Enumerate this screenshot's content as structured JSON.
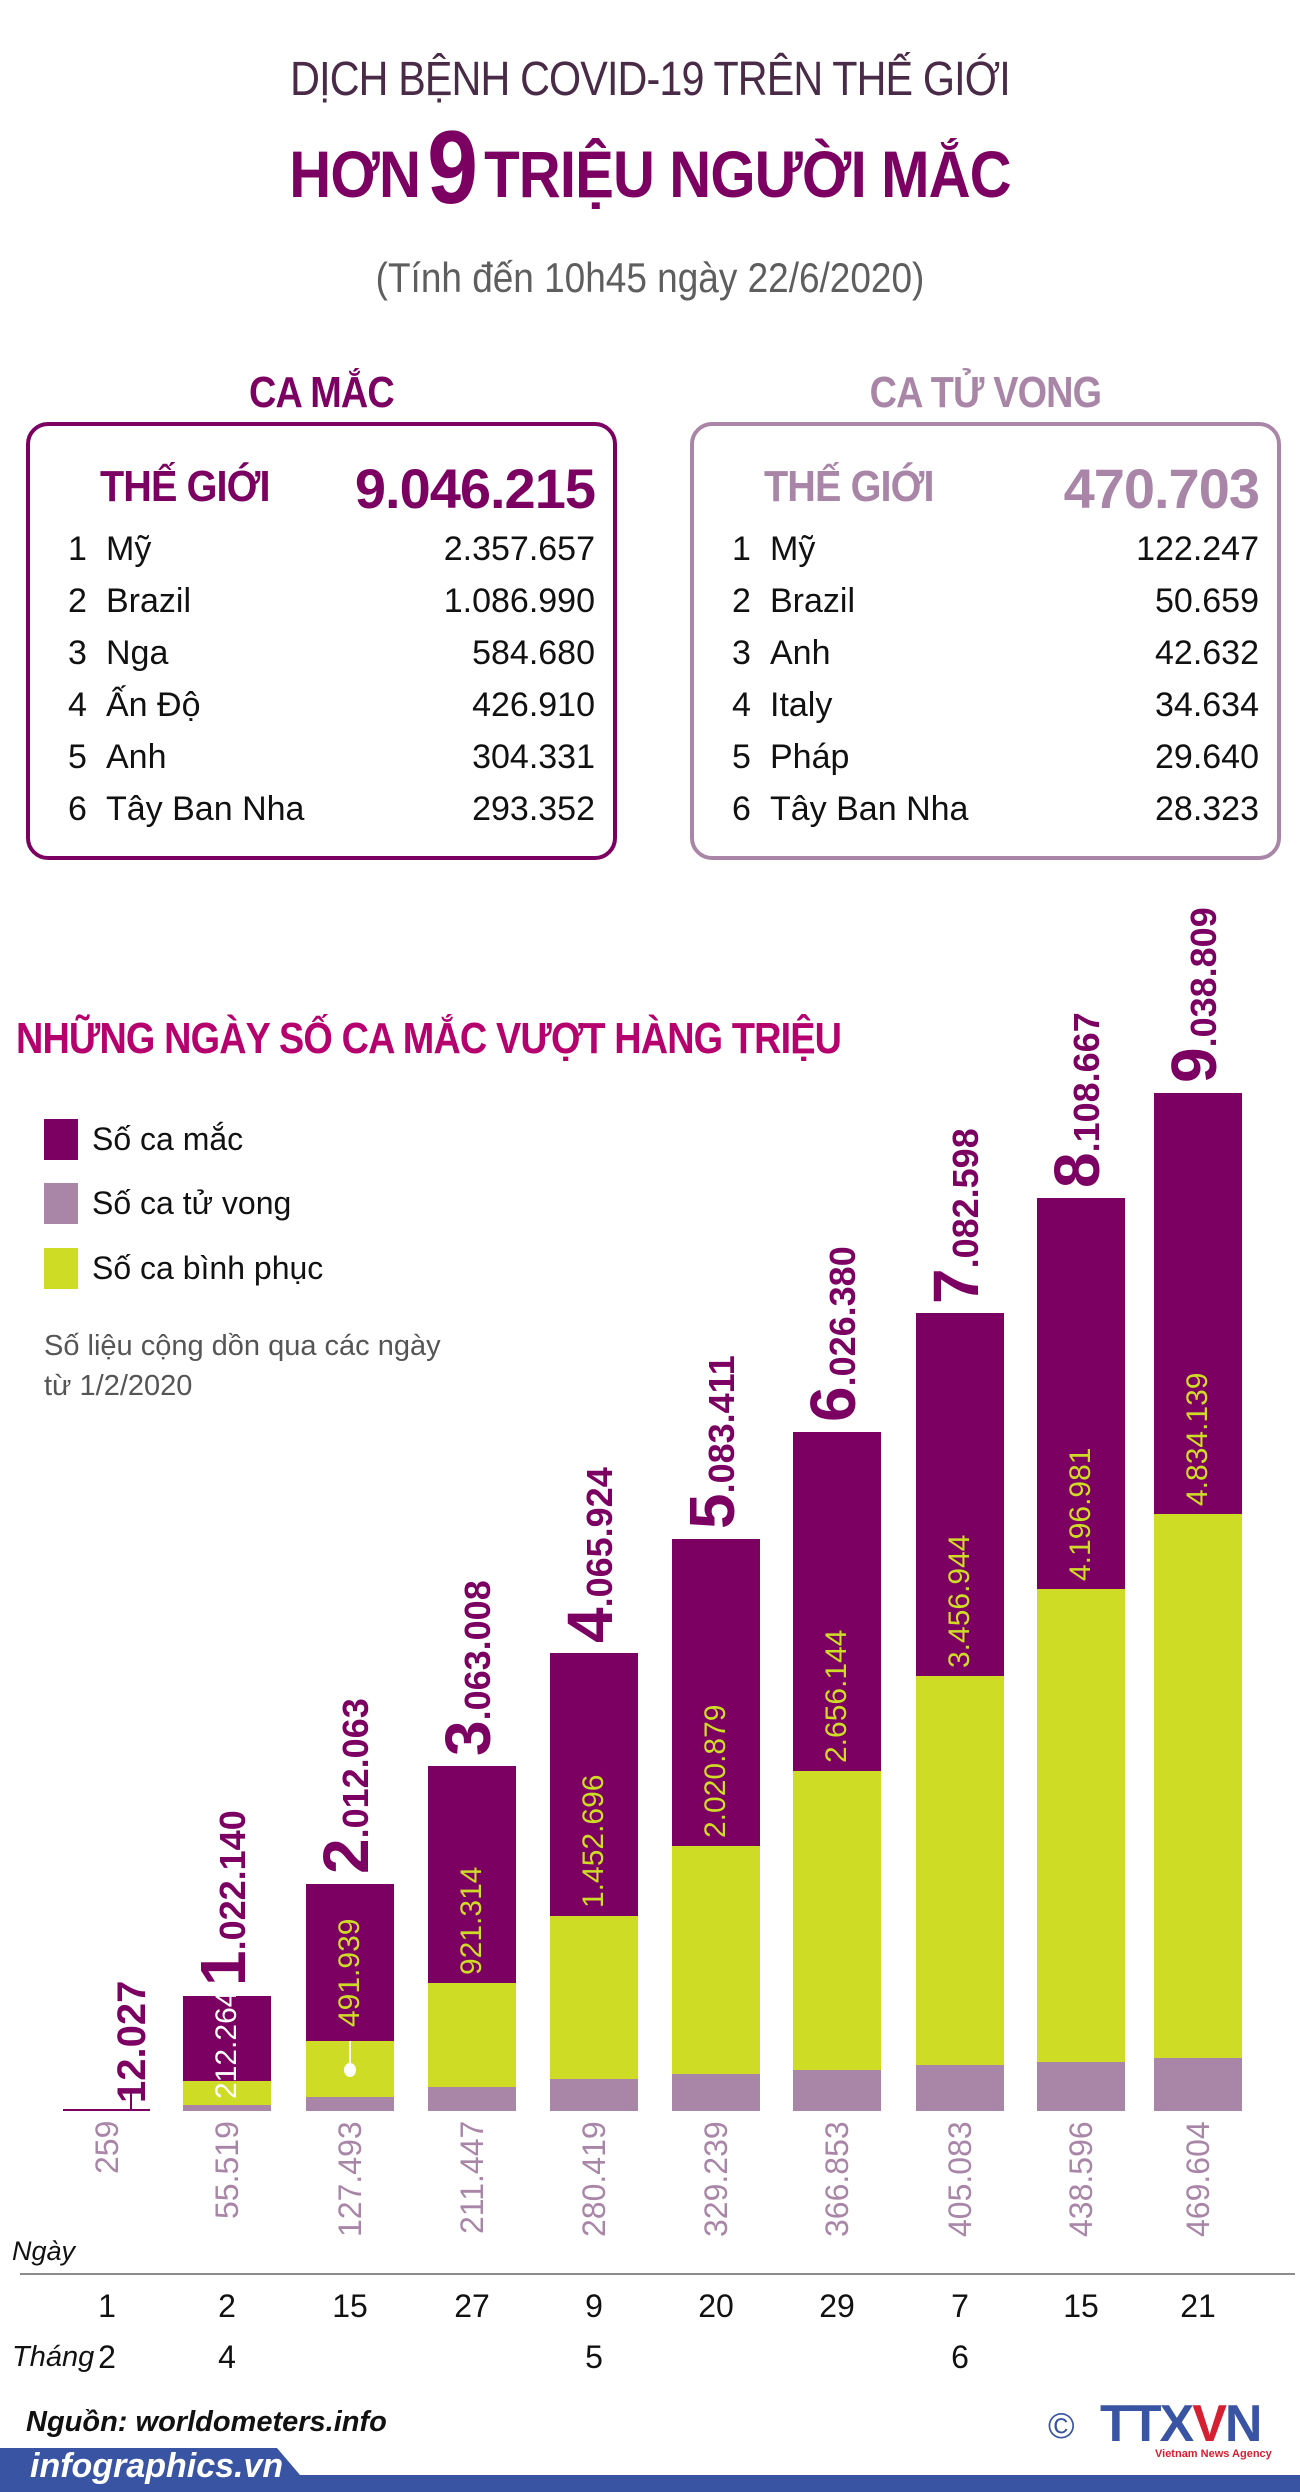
{
  "header": {
    "supertitle": "DỊCH BỆNH COVID-19 TRÊN THẾ GIỚI",
    "title_prefix": "HƠN",
    "title_number": "9",
    "title_suffix": "TRIỆU NGƯỜI MẮC",
    "subtitle": "(Tính đến 10h45 ngày 22/6/2020)"
  },
  "cases": {
    "heading": "CA MẮC",
    "world_label": "THẾ GIỚI",
    "world_value": "9.046.215",
    "countries": [
      {
        "rank": "1",
        "name": "Mỹ",
        "value": "2.357.657"
      },
      {
        "rank": "2",
        "name": "Brazil",
        "value": "1.086.990"
      },
      {
        "rank": "3",
        "name": "Nga",
        "value": "584.680"
      },
      {
        "rank": "4",
        "name": "Ấn Độ",
        "value": "426.910"
      },
      {
        "rank": "5",
        "name": "Anh",
        "value": "304.331"
      },
      {
        "rank": "6",
        "name": "Tây Ban Nha",
        "value": "293.352"
      }
    ]
  },
  "deaths": {
    "heading": "CA TỬ VONG",
    "world_label": "THẾ GIỚI",
    "world_value": "470.703",
    "countries": [
      {
        "rank": "1",
        "name": "Mỹ",
        "value": "122.247"
      },
      {
        "rank": "2",
        "name": "Brazil",
        "value": "50.659"
      },
      {
        "rank": "3",
        "name": "Anh",
        "value": "42.632"
      },
      {
        "rank": "4",
        "name": "Italy",
        "value": "34.634"
      },
      {
        "rank": "5",
        "name": "Pháp",
        "value": "29.640"
      },
      {
        "rank": "6",
        "name": "Tây Ban Nha",
        "value": "28.323"
      }
    ]
  },
  "chart": {
    "title": "NHỮNG NGÀY SỐ CA MẮC VƯỢT HÀNG TRIỆU",
    "legend": [
      {
        "label": "Số ca mắc",
        "color": "#7b0062"
      },
      {
        "label": "Số ca tử vong",
        "color": "#a986a8"
      },
      {
        "label": "Số ca bình phục",
        "color": "#cfdc26"
      }
    ],
    "note_line1": "Số liệu cộng dồn qua các ngày",
    "note_line2": "từ 1/2/2020",
    "day_axis_label": "Ngày",
    "month_axis_label": "Tháng"
  },
  "chart_data": {
    "type": "bar",
    "title": "NHỮNG NGÀY SỐ CA MẮC VƯỢT HÀNG TRIỆU",
    "subtitle": "Số liệu cộng dồn qua các ngày từ 1/2/2020",
    "stacked": "overlaid",
    "categories": [
      "1/2",
      "2/4",
      "15/4",
      "27/4",
      "9/5",
      "20/5",
      "29/5",
      "7/6",
      "15/6",
      "21/6"
    ],
    "days": [
      "1",
      "2",
      "15",
      "27",
      "9",
      "20",
      "29",
      "7",
      "15",
      "21"
    ],
    "months": [
      "2",
      "4",
      "",
      "",
      "5",
      "",
      "",
      "6",
      "",
      ""
    ],
    "series": [
      {
        "name": "Số ca mắc",
        "color": "#7b0062",
        "values": [
          12027,
          1022140,
          2012063,
          3063008,
          4065924,
          5083411,
          6026380,
          7082598,
          8108667,
          9038809
        ],
        "labels": [
          "12.027",
          "1.022.140",
          "2.012.063",
          "3.063.008",
          "4.065.924",
          "5.083.411",
          "6.026.380",
          "7.082.598",
          "8.108.667",
          "9.038.809"
        ]
      },
      {
        "name": "Số ca bình phục",
        "color": "#cfdc26",
        "values": [
          null,
          212264,
          491939,
          921314,
          1452696,
          2020879,
          2656144,
          3456944,
          4196981,
          4834139
        ],
        "labels": [
          "",
          "212.264",
          "491.939",
          "921.314",
          "1.452.696",
          "2.020.879",
          "2.656.144",
          "3.456.944",
          "4.196.981",
          "4.834.139"
        ]
      },
      {
        "name": "Số ca tử vong",
        "color": "#a986a8",
        "values": [
          259,
          55519,
          127493,
          211447,
          280419,
          329239,
          366853,
          405083,
          438596,
          469604
        ],
        "labels": [
          "259",
          "55.519",
          "127.493",
          "211.447",
          "280.419",
          "329.239",
          "366.853",
          "405.083",
          "438.596",
          "469.604"
        ]
      }
    ],
    "xlabel": "Ngày / Tháng",
    "ylabel": "",
    "ylim": [
      0,
      9500000
    ],
    "grid": false,
    "legend_position": "top-left"
  },
  "footer": {
    "source": "Nguồn: worldometers.info",
    "site": "infographics.vn",
    "copyright": "©",
    "agency_logo": "TTXVN",
    "agency_logo_prefix": "TTX",
    "agency_logo_v": "V",
    "agency_logo_n": "N",
    "agency_name": "Vietnam News Agency"
  }
}
